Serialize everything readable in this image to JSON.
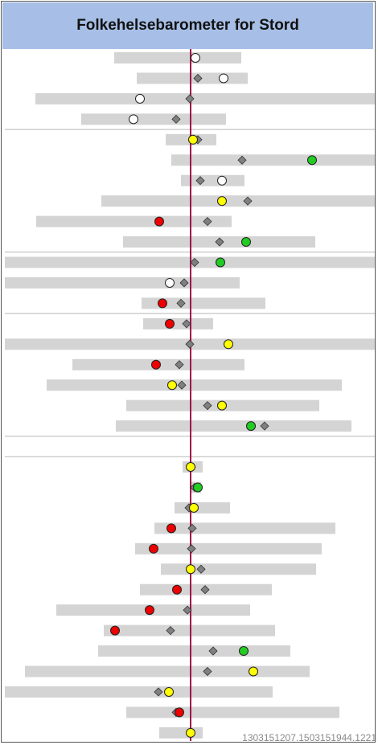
{
  "title": "Folkehelsebarometer for Stord",
  "footer_code": "1303151207.1503151944.1221",
  "colors": {
    "header_bg": "#a7bfe6",
    "range_bar": "#d4d4d4",
    "reference_line": "#a0124a",
    "diamond": "#808080",
    "white": "#ffffff",
    "yellow": "#ffff00",
    "green": "#22cc22",
    "red": "#ee0000"
  },
  "chart_data": {
    "type": "dot-range",
    "x_domain": [
      0,
      470
    ],
    "reference_value": 237,
    "legend": "none",
    "grid": false,
    "rows": [
      {
        "bar": [
          142,
          300
        ],
        "diamond": null,
        "circle": 243,
        "color": "white"
      },
      {
        "bar": [
          170,
          308
        ],
        "diamond": 246,
        "circle": 278,
        "color": "white"
      },
      {
        "bar": [
          44,
          466
        ],
        "diamond": 236,
        "circle": 174,
        "color": "white"
      },
      {
        "bar": [
          101,
          281
        ],
        "diamond": 219,
        "circle": 166,
        "color": "white"
      },
      {
        "bar": [
          206,
          269
        ],
        "diamond": 246,
        "circle": 240,
        "color": "yellow"
      },
      {
        "bar": [
          213,
          466
        ],
        "diamond": 301,
        "circle": 388,
        "color": "green"
      },
      {
        "bar": [
          225,
          304
        ],
        "diamond": 249,
        "circle": 276,
        "color": "white"
      },
      {
        "bar": [
          126,
          466
        ],
        "diamond": 308,
        "circle": 276,
        "color": "yellow"
      },
      {
        "bar": [
          45,
          288
        ],
        "diamond": 258,
        "circle": 198,
        "color": "red"
      },
      {
        "bar": [
          153,
          392
        ],
        "diamond": 273,
        "circle": 306,
        "color": "green"
      },
      {
        "bar": [
          6,
          466
        ],
        "diamond": 242,
        "circle": 274,
        "color": "green"
      },
      {
        "bar": [
          6,
          298
        ],
        "diamond": 229,
        "circle": 211,
        "color": "white"
      },
      {
        "bar": [
          176,
          330
        ],
        "diamond": 225,
        "circle": 202,
        "color": "red"
      },
      {
        "bar": [
          178,
          265
        ],
        "diamond": 232,
        "circle": 211,
        "color": "red"
      },
      {
        "bar": [
          6,
          466
        ],
        "diamond": 236,
        "circle": 284,
        "color": "yellow"
      },
      {
        "bar": [
          90,
          304
        ],
        "diamond": 223,
        "circle": 194,
        "color": "red"
      },
      {
        "bar": [
          58,
          425
        ],
        "diamond": 226,
        "circle": 214,
        "color": "yellow"
      },
      {
        "bar": [
          157,
          397
        ],
        "diamond": 258,
        "circle": 276,
        "color": "yellow"
      },
      {
        "bar": [
          144,
          437
        ],
        "diamond": 329,
        "circle": 312,
        "color": "green"
      },
      {
        "bar": null,
        "diamond": null,
        "circle": null,
        "color": null
      },
      {
        "bar": [
          227,
          252
        ],
        "diamond": 238,
        "circle": 237,
        "color": "yellow"
      },
      {
        "bar": [
          237,
          250
        ],
        "diamond": 242,
        "circle": 246,
        "color": "green"
      },
      {
        "bar": [
          217,
          286
        ],
        "diamond": 235,
        "circle": 241,
        "color": "yellow"
      },
      {
        "bar": [
          192,
          417
        ],
        "diamond": 239,
        "circle": 213,
        "color": "red"
      },
      {
        "bar": [
          168,
          400
        ],
        "diamond": 238,
        "circle": 191,
        "color": "red"
      },
      {
        "bar": [
          200,
          393
        ],
        "diamond": 250,
        "circle": 237,
        "color": "yellow"
      },
      {
        "bar": [
          174,
          338
        ],
        "diamond": 255,
        "circle": 220,
        "color": "red"
      },
      {
        "bar": [
          70,
          311
        ],
        "diamond": 233,
        "circle": 186,
        "color": "red"
      },
      {
        "bar": [
          129,
          342
        ],
        "diamond": 212,
        "circle": 143,
        "color": "red"
      },
      {
        "bar": [
          122,
          361
        ],
        "diamond": 265,
        "circle": 303,
        "color": "green"
      },
      {
        "bar": [
          31,
          385
        ],
        "diamond": 258,
        "circle": 315,
        "color": "yellow"
      },
      {
        "bar": [
          6,
          339
        ],
        "diamond": 197,
        "circle": 210,
        "color": "yellow"
      },
      {
        "bar": [
          157,
          422
        ],
        "diamond": 219,
        "circle": 223,
        "color": "red"
      },
      {
        "bar": [
          198,
          252
        ],
        "diamond": null,
        "circle": 237,
        "color": "yellow"
      }
    ],
    "separators_after_rows": [
      3,
      9,
      12,
      18,
      19
    ]
  }
}
